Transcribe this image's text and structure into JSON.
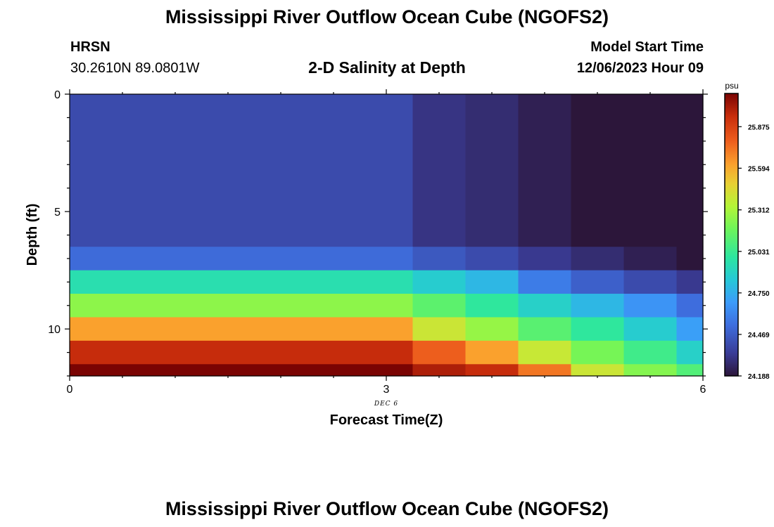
{
  "page": {
    "title": "Mississippi River Outflow Ocean Cube (NGOFS2)",
    "footer_title": "Mississippi River Outflow Ocean Cube (NGOFS2)",
    "station_code": "HRSN",
    "station_coords": "30.2610N  89.0801W",
    "plot_title": "2-D Salinity at Depth",
    "model_start_label": "Model Start Time",
    "model_start_value": "12/06/2023 Hour 09"
  },
  "chart_data": {
    "type": "heatmap",
    "title": "2-D Salinity at Depth",
    "xlabel": "Forecast Time(Z)",
    "ylabel": "Depth (ft)",
    "x_date_label": "DEC 6",
    "xlim": [
      0,
      6
    ],
    "ylim": [
      12,
      0
    ],
    "x_ticks": [
      0,
      3,
      6
    ],
    "y_ticks": [
      0,
      5,
      10
    ],
    "colorbar": {
      "unit": "psu",
      "range": [
        24.188,
        26.1
      ],
      "ticks": [
        24.188,
        24.469,
        24.75,
        25.031,
        25.312,
        25.594,
        25.875
      ],
      "tick_labels": [
        "24.188",
        "24.469",
        "24.750",
        "25.031",
        "25.312",
        "25.594",
        "25.875"
      ]
    },
    "time_edges": [
      0,
      3.25,
      3.75,
      4.25,
      4.75,
      5.25,
      5.75,
      6
    ],
    "depth_edges": [
      0,
      6.5,
      7.5,
      8.5,
      9.5,
      10.5,
      11.5,
      12
    ],
    "salinity": [
      [
        24.4,
        24.31,
        24.28,
        24.23,
        24.15,
        24.1,
        24.03
      ],
      [
        24.52,
        24.45,
        24.4,
        24.33,
        24.28,
        24.23,
        24.16
      ],
      [
        24.95,
        24.86,
        24.78,
        24.58,
        24.48,
        24.4,
        24.33
      ],
      [
        25.25,
        25.13,
        25.0,
        24.88,
        24.78,
        24.66,
        24.53
      ],
      [
        25.62,
        25.4,
        25.27,
        25.12,
        25.0,
        24.86,
        24.7
      ],
      [
        25.95,
        25.78,
        25.62,
        25.39,
        25.2,
        25.05,
        24.88
      ],
      [
        26.1,
        26.0,
        25.95,
        25.72,
        25.4,
        25.23,
        25.1
      ]
    ]
  }
}
